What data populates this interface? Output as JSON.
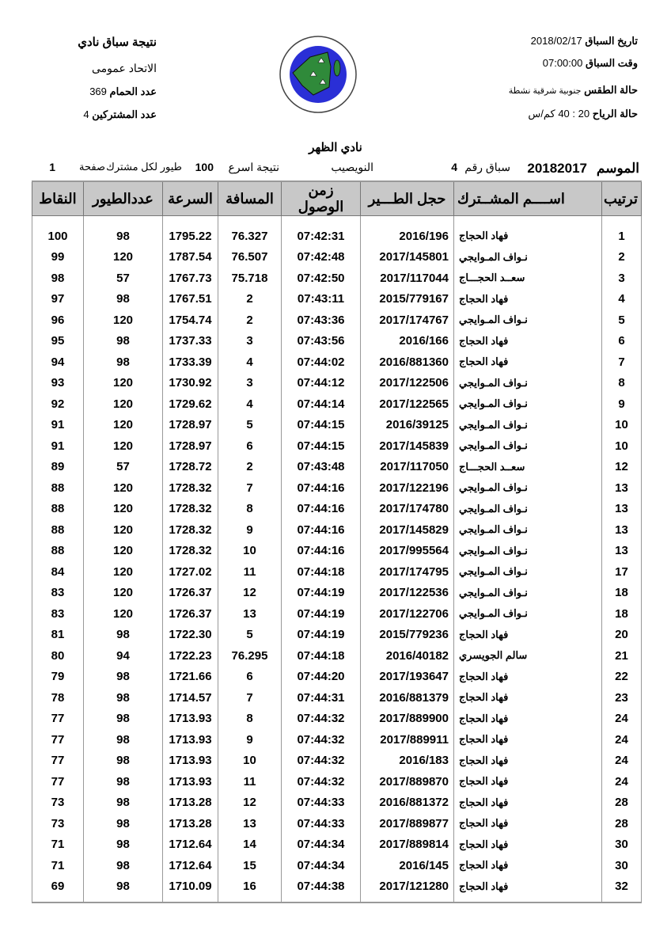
{
  "header": {
    "race_date_label": "تاريخ السباق",
    "race_date": "2018/02/17",
    "race_time_label": "وقت السباق",
    "race_time": "07:00:00",
    "weather_label": "حالة الطقس",
    "weather": "جنوبية شرقية نشطة",
    "wind_label": "حالة الرياح",
    "wind": "20 : 40 كم/س",
    "title": "نتيجة سباق نادي",
    "union": "الاتحاد عمومى",
    "pigeons_label": "عدد الحمام",
    "pigeons": "369",
    "participants_label": "عدد المشتركين",
    "participants": "4",
    "logo_text": "الاتحاد الكويتي لسباق حمام الزاجل - KUWAIT FEDRATION FOR RACING PIGEON",
    "club": "نادي الظهر"
  },
  "meta": {
    "season_label": "الموسم",
    "season": "20182017",
    "race_no_label": "سباق رقم",
    "race_no": "4",
    "location": "النويصيب",
    "fastest_label": "نتيجة اسرع",
    "fastest": "100",
    "per_participant_label": "طيور لكل مشترك",
    "page_label": "صفحة",
    "page": "1"
  },
  "table": {
    "columns": [
      "ترتيب",
      "اســــم المشــترك",
      "حجل الطـــير",
      "زمن الوصول",
      "المسافة",
      "السرعة",
      "عددالطيور",
      "النقاط"
    ],
    "rows": [
      [
        "1",
        "فهاد الحجاج",
        "2016/196",
        "07:42:31",
        "76.327",
        "1795.22",
        "98",
        "100"
      ],
      [
        "2",
        "نـواف المـوايجي",
        "2017/145801",
        "07:42:48",
        "76.507",
        "1787.54",
        "120",
        "99"
      ],
      [
        "3",
        "سعــد الحجـــاج",
        "2017/117044",
        "07:42:50",
        "75.718",
        "1767.73",
        "57",
        "98"
      ],
      [
        "4",
        "فهاد الحجاج",
        "2015/779167",
        "07:43:11",
        "2",
        "1767.51",
        "98",
        "97"
      ],
      [
        "5",
        "نـواف المـوايجي",
        "2017/174767",
        "07:43:36",
        "2",
        "1754.74",
        "120",
        "96"
      ],
      [
        "6",
        "فهاد الحجاج",
        "2016/166",
        "07:43:56",
        "3",
        "1737.33",
        "98",
        "95"
      ],
      [
        "7",
        "فهاد الحجاج",
        "2016/881360",
        "07:44:02",
        "4",
        "1733.39",
        "98",
        "94"
      ],
      [
        "8",
        "نـواف المـوايجي",
        "2017/122506",
        "07:44:12",
        "3",
        "1730.92",
        "120",
        "93"
      ],
      [
        "9",
        "نـواف المـوايجي",
        "2017/122565",
        "07:44:14",
        "4",
        "1729.62",
        "120",
        "92"
      ],
      [
        "10",
        "نـواف المـوايجي",
        "2016/39125",
        "07:44:15",
        "5",
        "1728.97",
        "120",
        "91"
      ],
      [
        "10",
        "نـواف المـوايجي",
        "2017/145839",
        "07:44:15",
        "6",
        "1728.97",
        "120",
        "91"
      ],
      [
        "12",
        "سعــد الحجـــاج",
        "2017/117050",
        "07:43:48",
        "2",
        "1728.72",
        "57",
        "89"
      ],
      [
        "13",
        "نـواف المـوايجي",
        "2017/122196",
        "07:44:16",
        "7",
        "1728.32",
        "120",
        "88"
      ],
      [
        "13",
        "نـواف المـوايجي",
        "2017/174780",
        "07:44:16",
        "8",
        "1728.32",
        "120",
        "88"
      ],
      [
        "13",
        "نـواف المـوايجي",
        "2017/145829",
        "07:44:16",
        "9",
        "1728.32",
        "120",
        "88"
      ],
      [
        "13",
        "نـواف المـوايجي",
        "2017/995564",
        "07:44:16",
        "10",
        "1728.32",
        "120",
        "88"
      ],
      [
        "17",
        "نـواف المـوايجي",
        "2017/174795",
        "07:44:18",
        "11",
        "1727.02",
        "120",
        "84"
      ],
      [
        "18",
        "نـواف المـوايجي",
        "2017/122536",
        "07:44:19",
        "12",
        "1726.37",
        "120",
        "83"
      ],
      [
        "18",
        "نـواف المـوايجي",
        "2017/122706",
        "07:44:19",
        "13",
        "1726.37",
        "120",
        "83"
      ],
      [
        "20",
        "فهاد الحجاج",
        "2015/779236",
        "07:44:19",
        "5",
        "1722.30",
        "98",
        "81"
      ],
      [
        "21",
        "سالم الجويسري",
        "2016/40182",
        "07:44:18",
        "76.295",
        "1722.23",
        "94",
        "80"
      ],
      [
        "22",
        "فهاد الحجاج",
        "2017/193647",
        "07:44:20",
        "6",
        "1721.66",
        "98",
        "79"
      ],
      [
        "23",
        "فهاد الحجاج",
        "2016/881379",
        "07:44:31",
        "7",
        "1714.57",
        "98",
        "78"
      ],
      [
        "24",
        "فهاد الحجاج",
        "2017/889900",
        "07:44:32",
        "8",
        "1713.93",
        "98",
        "77"
      ],
      [
        "24",
        "فهاد الحجاج",
        "2017/889911",
        "07:44:32",
        "9",
        "1713.93",
        "98",
        "77"
      ],
      [
        "24",
        "فهاد الحجاج",
        "2016/183",
        "07:44:32",
        "10",
        "1713.93",
        "98",
        "77"
      ],
      [
        "24",
        "فهاد الحجاج",
        "2017/889870",
        "07:44:32",
        "11",
        "1713.93",
        "98",
        "77"
      ],
      [
        "28",
        "فهاد الحجاج",
        "2016/881372",
        "07:44:33",
        "12",
        "1713.28",
        "98",
        "73"
      ],
      [
        "28",
        "فهاد الحجاج",
        "2017/889877",
        "07:44:33",
        "13",
        "1713.28",
        "98",
        "73"
      ],
      [
        "30",
        "فهاد الحجاج",
        "2017/889814",
        "07:44:34",
        "14",
        "1712.64",
        "98",
        "71"
      ],
      [
        "30",
        "فهاد الحجاج",
        "2016/145",
        "07:44:34",
        "15",
        "1712.64",
        "98",
        "71"
      ],
      [
        "32",
        "فهاد الحجاج",
        "2017/121280",
        "07:44:38",
        "16",
        "1710.09",
        "98",
        "69"
      ]
    ]
  },
  "colors": {
    "header_bg": "#c8c8c8",
    "logo_blue": "#2a2fd6",
    "logo_green": "#2f8a3a"
  }
}
